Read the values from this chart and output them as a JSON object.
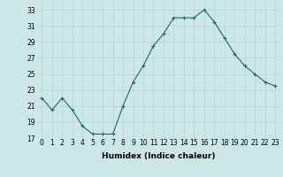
{
  "x": [
    0,
    1,
    2,
    3,
    4,
    5,
    6,
    7,
    8,
    9,
    10,
    11,
    12,
    13,
    14,
    15,
    16,
    17,
    18,
    19,
    20,
    21,
    22,
    23
  ],
  "y": [
    22,
    20.5,
    22,
    20.5,
    18.5,
    17.5,
    17.5,
    17.5,
    21,
    24,
    26,
    28.5,
    30,
    32,
    32,
    32,
    33,
    31.5,
    29.5,
    27.5,
    26,
    25,
    24,
    23.5
  ],
  "xlabel": "Humidex (Indice chaleur)",
  "ylim": [
    17,
    34
  ],
  "xlim": [
    -0.5,
    23.5
  ],
  "yticks": [
    17,
    19,
    21,
    23,
    25,
    27,
    29,
    31,
    33
  ],
  "xtick_labels": [
    "0",
    "1",
    "2",
    "3",
    "4",
    "5",
    "6",
    "7",
    "8",
    "9",
    "10",
    "11",
    "12",
    "13",
    "14",
    "15",
    "16",
    "17",
    "18",
    "19",
    "20",
    "21",
    "22",
    "23"
  ],
  "line_color": "#1a6b5e",
  "marker": "+",
  "bg_color": "#cce8e6",
  "grid_color": "#b8d4d2",
  "label_fontsize": 6.5,
  "tick_fontsize": 5.5
}
